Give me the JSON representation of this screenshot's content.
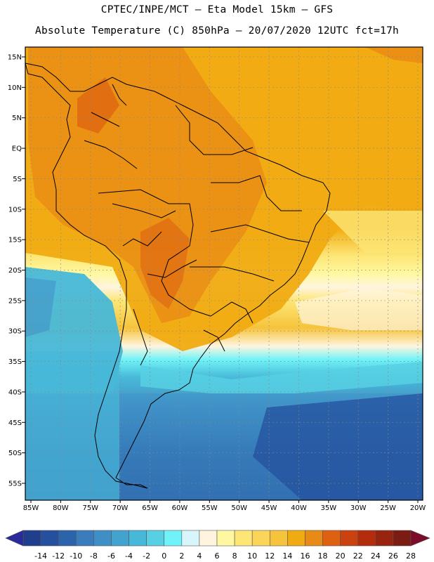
{
  "header": {
    "line1": "CPTEC/INPE/MCT –  Eta Model 15km – GFS",
    "line2": "Absolute Temperature (C) 850hPa – 20/07/2020 12UTC fct=17h"
  },
  "map": {
    "lat_labels": [
      "15N",
      "10N",
      "5N",
      "EQ",
      "5S",
      "10S",
      "15S",
      "20S",
      "25S",
      "30S",
      "35S",
      "40S",
      "45S",
      "50S",
      "55S"
    ],
    "lon_labels": [
      "85W",
      "80W",
      "75W",
      "70W",
      "65W",
      "60W",
      "55W",
      "50W",
      "45W",
      "40W",
      "35W",
      "30W",
      "25W",
      "20W"
    ],
    "grid_lines": true
  },
  "colorbar": {
    "labels": [
      "-14",
      "-12",
      "-10",
      "-8",
      "-6",
      "-4",
      "-2",
      "0",
      "2",
      "4",
      "6",
      "8",
      "10",
      "12",
      "14",
      "16",
      "18",
      "20",
      "22",
      "24",
      "26",
      "28"
    ],
    "colors": [
      "#1f3f8c",
      "#24509e",
      "#2c64ac",
      "#3a7cbc",
      "#3f8fc6",
      "#43a3cf",
      "#48b8d8",
      "#57d0e3",
      "#6ff3f8",
      "#d7f5fa",
      "#fff5df",
      "#fff8a0",
      "#fde675",
      "#fbd55a",
      "#f6c33c",
      "#f1ab12",
      "#e88a16",
      "#de6011",
      "#c9420f",
      "#b32d0d",
      "#982410",
      "#7a1b14"
    ],
    "under_color": "#2a2a9a",
    "over_color": "#7d0b2a"
  }
}
